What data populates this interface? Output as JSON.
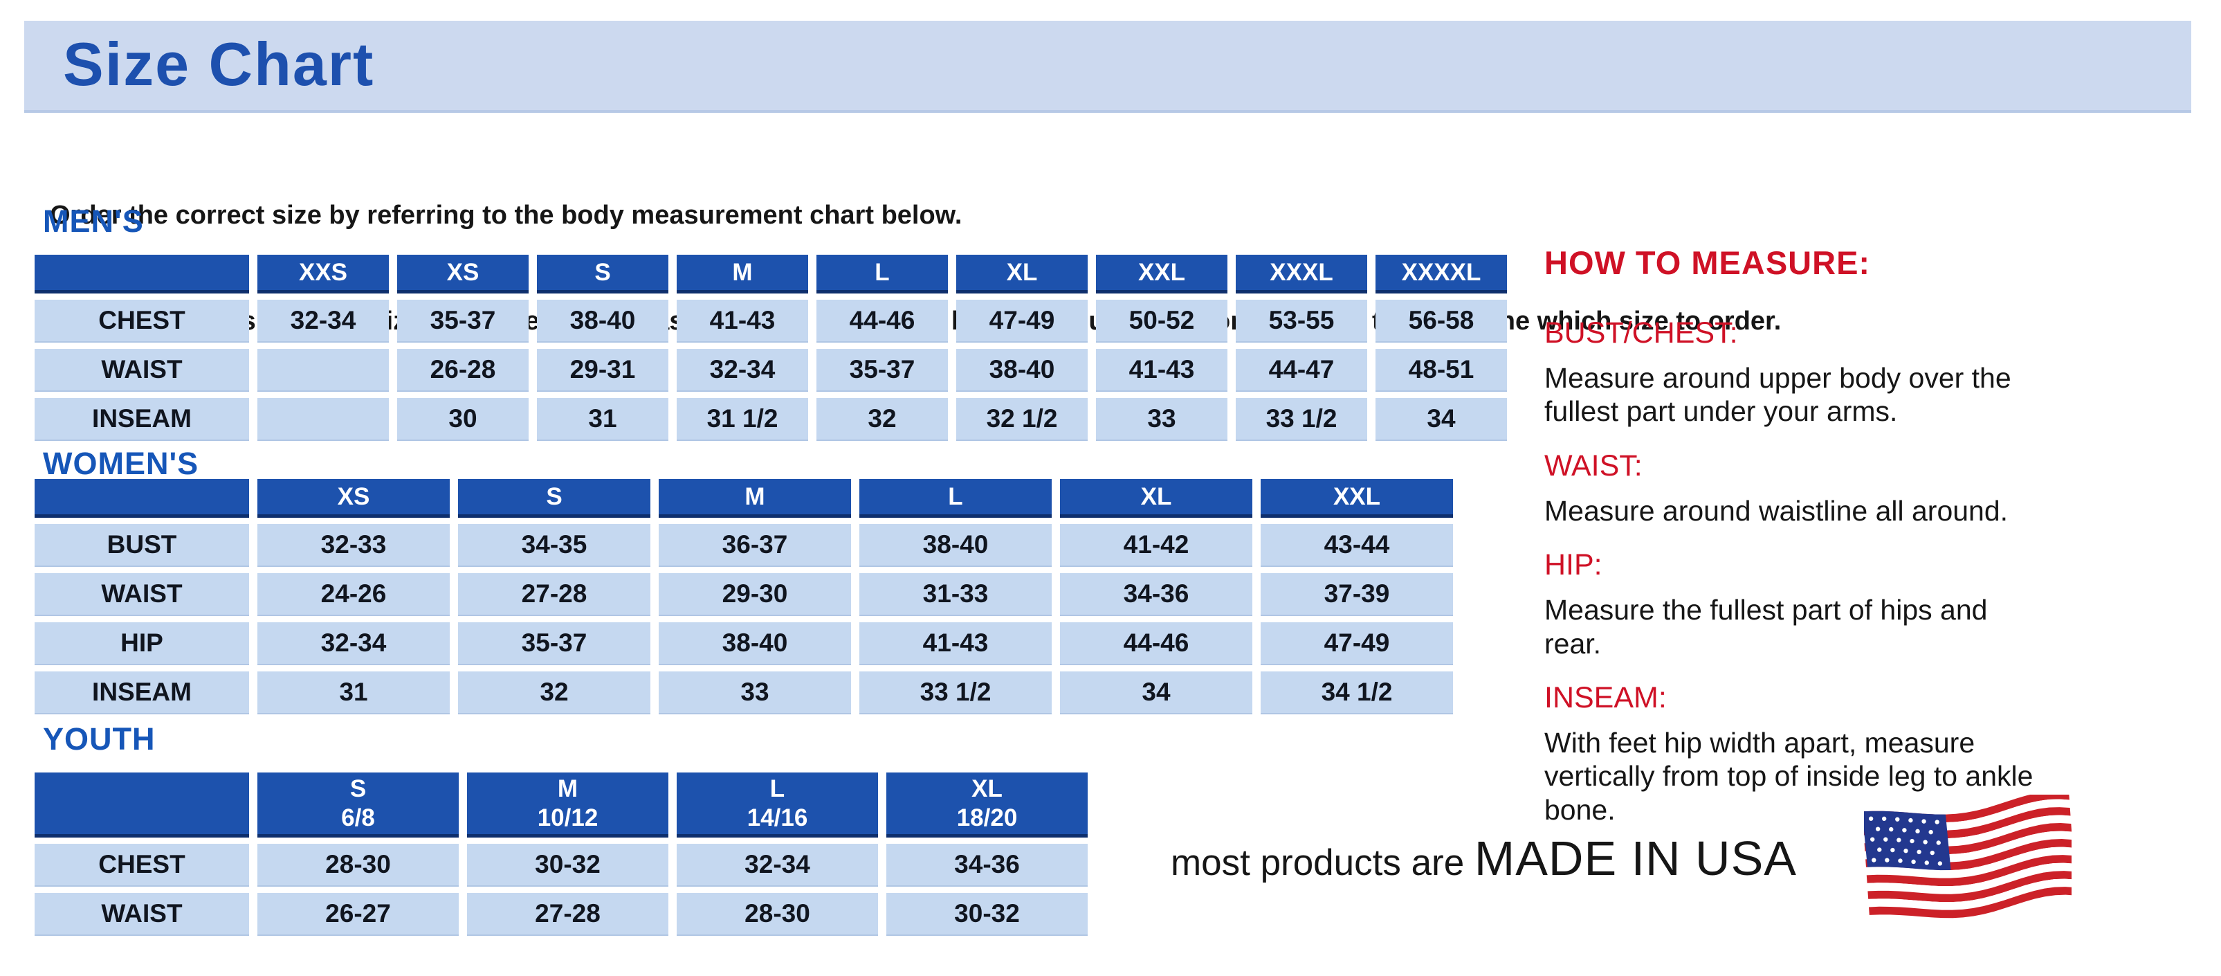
{
  "page": {
    "title": "Size Chart",
    "intro_line1": "Order the correct size by referring to the body measurement chart below.",
    "intro_line2": "Measurements shown on size chart are body measurements.  Find your body measurements on the chart to determine which size to order."
  },
  "colors": {
    "banner_bg": "#ccd9ef",
    "banner_edge": "#b7c9e6",
    "title_blue": "#1d50ae",
    "heading_blue": "#1656b8",
    "header_blue": "#1d52ad",
    "header_border": "#0e2f6d",
    "cell_bg": "#c5d8f0",
    "cell_edge": "#b0c6e4",
    "cell_text": "#10151f",
    "red": "#cf1126",
    "text": "#161616",
    "flag_red": "#cc2128",
    "flag_blue": "#23388f"
  },
  "tables": {
    "mens": {
      "heading": "MEN'S",
      "columns": [
        "XXS",
        "XS",
        "S",
        "M",
        "L",
        "XL",
        "XXL",
        "XXXL",
        "XXXXL"
      ],
      "rows": [
        {
          "label": "CHEST",
          "values": [
            "32-34",
            "35-37",
            "38-40",
            "41-43",
            "44-46",
            "47-49",
            "50-52",
            "53-55",
            "56-58"
          ]
        },
        {
          "label": "WAIST",
          "values": [
            "",
            "26-28",
            "29-31",
            "32-34",
            "35-37",
            "38-40",
            "41-43",
            "44-47",
            "48-51"
          ]
        },
        {
          "label": "INSEAM",
          "values": [
            "",
            "30",
            "31",
            "31 1/2",
            "32",
            "32 1/2",
            "33",
            "33 1/2",
            "34"
          ]
        }
      ]
    },
    "womens": {
      "heading": "WOMEN'S",
      "columns": [
        "XS",
        "S",
        "M",
        "L",
        "XL",
        "XXL"
      ],
      "rows": [
        {
          "label": "BUST",
          "values": [
            "32-33",
            "34-35",
            "36-37",
            "38-40",
            "41-42",
            "43-44"
          ]
        },
        {
          "label": "WAIST",
          "values": [
            "24-26",
            "27-28",
            "29-30",
            "31-33",
            "34-36",
            "37-39"
          ]
        },
        {
          "label": "HIP",
          "values": [
            "32-34",
            "35-37",
            "38-40",
            "41-43",
            "44-46",
            "47-49"
          ]
        },
        {
          "label": "INSEAM",
          "values": [
            "31",
            "32",
            "33",
            "33 1/2",
            "34",
            "34 1/2"
          ]
        }
      ]
    },
    "youth": {
      "heading": "YOUTH",
      "columns": [
        [
          "S",
          "6/8"
        ],
        [
          "M",
          "10/12"
        ],
        [
          "L",
          "14/16"
        ],
        [
          "XL",
          "18/20"
        ]
      ],
      "rows": [
        {
          "label": "CHEST",
          "values": [
            "28-30",
            "30-32",
            "32-34",
            "34-36"
          ]
        },
        {
          "label": "WAIST",
          "values": [
            "26-27",
            "27-28",
            "28-30",
            "30-32"
          ]
        }
      ]
    }
  },
  "how_to_measure": {
    "heading": "HOW TO MEASURE:",
    "items": [
      {
        "label": "BUST/CHEST:",
        "text": "Measure around upper body over the fullest part under your arms."
      },
      {
        "label": "WAIST:",
        "text": "Measure around waistline all around."
      },
      {
        "label": "HIP:",
        "text": "Measure the fullest part of hips and rear."
      },
      {
        "label": "INSEAM:",
        "text": "With feet hip width apart, measure vertically from top of inside leg to ankle bone."
      }
    ]
  },
  "footer": {
    "prefix": "most products are ",
    "emphasis": "MADE IN USA",
    "flag_icon": "usa-flag-icon"
  }
}
